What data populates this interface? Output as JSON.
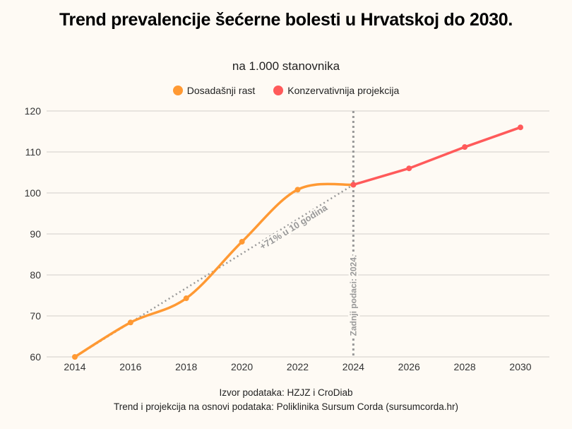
{
  "chart_data": {
    "type": "line",
    "title": "Trend prevalencije šećerne bolesti u Hrvatskoj do 2030.",
    "subtitle": "na 1.000 stanovnika",
    "xlabel": "",
    "ylabel": "",
    "x_ticks": [
      "2014",
      "2016",
      "2018",
      "2020",
      "2022",
      "2024",
      "2026",
      "2028",
      "2030"
    ],
    "y_ticks": [
      "60",
      "70",
      "80",
      "90",
      "100",
      "110",
      "120"
    ],
    "xlim": [
      2013,
      2031
    ],
    "ylim": [
      60,
      120
    ],
    "grid": "horizontal",
    "legend_position": "top",
    "series": [
      {
        "name": "Dosadašnji rast",
        "color": "#ff9933",
        "smooth": true,
        "x": [
          2014,
          2016,
          2018,
          2020,
          2022,
          2024
        ],
        "y": [
          60,
          68.4,
          74.3,
          88.1,
          100.8,
          102
        ]
      },
      {
        "name": "Konzervativnija projekcija",
        "color": "#ff5a5a",
        "smooth": false,
        "x": [
          2024,
          2026,
          2028,
          2030
        ],
        "y": [
          102,
          106,
          111.2,
          116
        ]
      }
    ],
    "annotations": {
      "trend_line": {
        "x": [
          2014,
          2024
        ],
        "y": [
          60,
          102
        ],
        "label": "+71% u 10 godina"
      },
      "vertical_line": {
        "x": 2024,
        "label": "Zadnji podaci: 2024."
      }
    }
  },
  "footer": {
    "source": "Izvor podataka: HZJZ i CroDiab",
    "credit": "Trend i projekcija na osnovi podataka: Poliklinika Sursum Corda (sursumcorda.hr)"
  }
}
